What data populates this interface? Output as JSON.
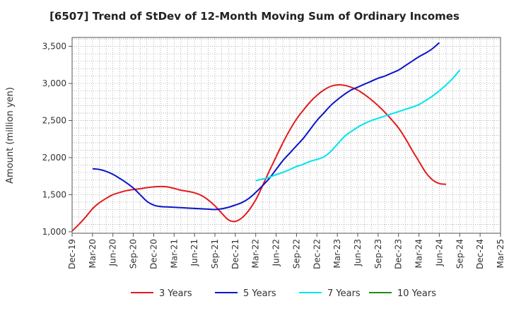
{
  "chart_data": {
    "type": "line",
    "title": "[6507]  Trend of StDev of 12-Month Moving Sum of Ordinary Incomes",
    "xlabel": "",
    "ylabel": "Amount (million yen)",
    "ylim": [
      980,
      3620
    ],
    "yticks": [
      1000,
      1500,
      2000,
      2500,
      3000,
      3500
    ],
    "ytick_labels": [
      "1,000",
      "1,500",
      "2,000",
      "2,500",
      "3,000",
      "3,500"
    ],
    "x_start": "Dec-19",
    "x_count_months": 63,
    "x_tick_labels": [
      "Dec-19",
      "Mar-20",
      "Jun-20",
      "Sep-20",
      "Dec-20",
      "Mar-21",
      "Jun-21",
      "Sep-21",
      "Dec-21",
      "Mar-22",
      "Jun-22",
      "Sep-22",
      "Dec-22",
      "Mar-23",
      "Jun-23",
      "Sep-23",
      "Dec-23",
      "Mar-24",
      "Jun-24",
      "Sep-24",
      "Dec-24",
      "Mar-25"
    ],
    "grid": true,
    "legend_position": "bottom",
    "series": [
      {
        "name": "3 Years",
        "color": "#e31a1c",
        "start_month_index": 0,
        "values": [
          1010,
          1100,
          1200,
          1310,
          1390,
          1450,
          1500,
          1530,
          1555,
          1570,
          1580,
          1595,
          1605,
          1610,
          1605,
          1585,
          1560,
          1545,
          1525,
          1490,
          1430,
          1350,
          1250,
          1160,
          1140,
          1190,
          1290,
          1430,
          1620,
          1820,
          2010,
          2200,
          2370,
          2520,
          2640,
          2750,
          2840,
          2910,
          2960,
          2980,
          2975,
          2950,
          2910,
          2850,
          2780,
          2700,
          2610,
          2510,
          2400,
          2260,
          2100,
          1950,
          1800,
          1700,
          1650,
          1640
        ]
      },
      {
        "name": "5 Years",
        "color": "#0a14c8",
        "start_month_index": 3,
        "values": [
          1850,
          1840,
          1815,
          1775,
          1720,
          1660,
          1590,
          1500,
          1410,
          1360,
          1340,
          1335,
          1330,
          1325,
          1320,
          1315,
          1310,
          1305,
          1300,
          1310,
          1330,
          1360,
          1395,
          1450,
          1530,
          1620,
          1720,
          1840,
          1960,
          2060,
          2160,
          2260,
          2380,
          2500,
          2600,
          2700,
          2780,
          2850,
          2910,
          2950,
          2990,
          3030,
          3070,
          3100,
          3140,
          3180,
          3240,
          3300,
          3360,
          3410,
          3470,
          3550
        ]
      },
      {
        "name": "7 Years",
        "color": "#00e5ee",
        "start_month_index": 27,
        "values": [
          1690,
          1710,
          1735,
          1770,
          1800,
          1840,
          1880,
          1910,
          1950,
          1975,
          2010,
          2080,
          2180,
          2280,
          2350,
          2410,
          2460,
          2500,
          2530,
          2560,
          2590,
          2620,
          2650,
          2680,
          2715,
          2770,
          2830,
          2900,
          2980,
          3070,
          3180
        ]
      },
      {
        "name": "10 Years",
        "color": "#1f8a1f",
        "start_month_index": 0,
        "values": []
      }
    ]
  }
}
